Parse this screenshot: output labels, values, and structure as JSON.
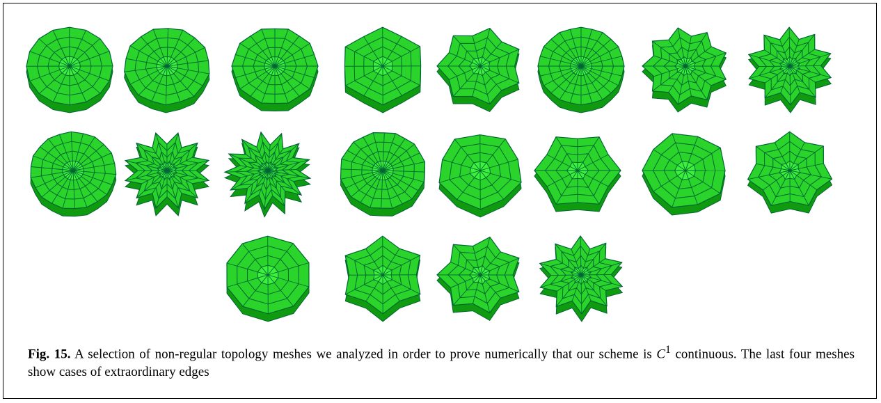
{
  "figure": {
    "caption": {
      "label": "Fig. 15.",
      "text": "A selection of non-regular topology meshes we analyzed in order to prove numerically that our scheme is ",
      "math": "C",
      "superscript": "1",
      "rest": " continuous. The last four meshes show cases of extraordinary edges"
    }
  }
}
